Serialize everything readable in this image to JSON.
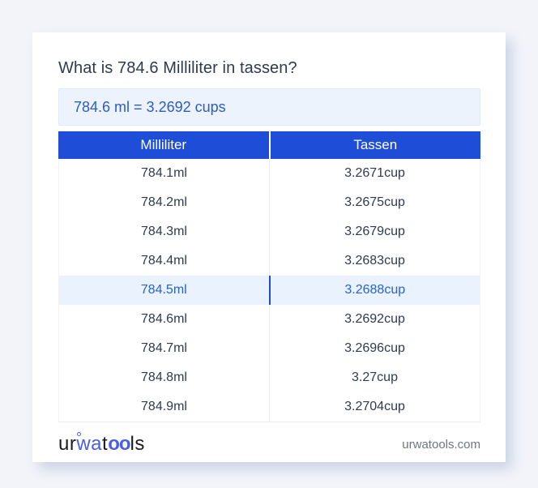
{
  "page": {
    "background": "#f2f4fa",
    "card_background": "#ffffff"
  },
  "card": {
    "title": "What is 784.6 Milliliter in tassen?",
    "answer": "784.6 ml = 3.2692 cups"
  },
  "table": {
    "headers": [
      "Milliliter",
      "Tassen"
    ],
    "rows": [
      {
        "ml": "784.1ml",
        "cup": "3.2671cup",
        "highlight": false
      },
      {
        "ml": "784.2ml",
        "cup": "3.2675cup",
        "highlight": false
      },
      {
        "ml": "784.3ml",
        "cup": "3.2679cup",
        "highlight": false
      },
      {
        "ml": "784.4ml",
        "cup": "3.2683cup",
        "highlight": false
      },
      {
        "ml": "784.5ml",
        "cup": "3.2688cup",
        "highlight": true
      },
      {
        "ml": "784.6ml",
        "cup": "3.2692cup",
        "highlight": false
      },
      {
        "ml": "784.7ml",
        "cup": "3.2696cup",
        "highlight": false
      },
      {
        "ml": "784.8ml",
        "cup": "3.27cup",
        "highlight": false
      },
      {
        "ml": "784.9ml",
        "cup": "3.2704cup",
        "highlight": false
      }
    ]
  },
  "footer": {
    "logo": {
      "part1": "ur",
      "part2": "wa",
      "part3": "t",
      "part4": "oo",
      "part5": "ls"
    },
    "domain": "urwatools.com"
  },
  "colors": {
    "header_blue": "#1e4ed8",
    "answer_text_blue": "#2b5cc6",
    "highlight_bg": "#eaf2fd",
    "highlight_text": "#2563d0",
    "logo_blue": "#4a5fe8",
    "title_color": "#2e3b4e"
  }
}
